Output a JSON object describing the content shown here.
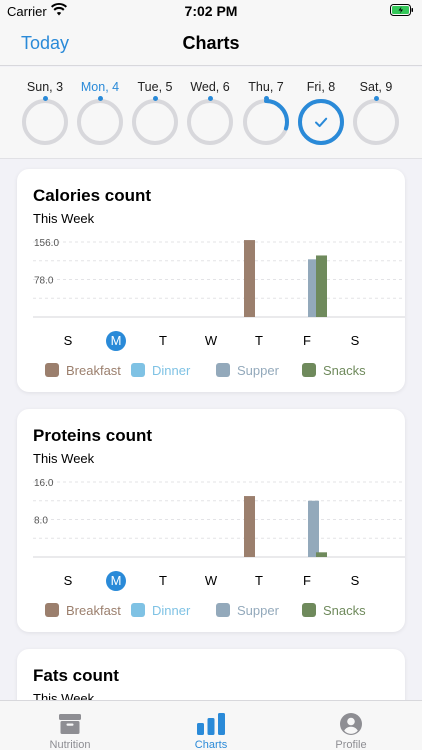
{
  "status_bar": {
    "carrier": "Carrier",
    "time": "7:02 PM"
  },
  "nav": {
    "left_button": "Today",
    "title": "Charts"
  },
  "week": [
    {
      "label": "Sun, 3",
      "progress": 0,
      "active": false,
      "dot": true
    },
    {
      "label": "Mon, 4",
      "progress": 0,
      "active": true,
      "dot": true
    },
    {
      "label": "Tue, 5",
      "progress": 0,
      "active": false,
      "dot": true
    },
    {
      "label": "Wed, 6",
      "progress": 0,
      "active": false,
      "dot": true
    },
    {
      "label": "Thu, 7",
      "progress": 0.3,
      "active": false,
      "dot": true
    },
    {
      "label": "Fri, 8",
      "progress": 1.0,
      "active": false,
      "dot": false,
      "selected": true
    },
    {
      "label": "Sat, 9",
      "progress": 0,
      "active": false,
      "dot": true
    }
  ],
  "colors": {
    "accent": "#2a8ad8",
    "breakfast": "#9b7f6d",
    "dinner": "#7fc2e4",
    "supper": "#93a9bb",
    "snacks": "#6f8a5c",
    "ring": "#d8d8dc"
  },
  "legend": [
    {
      "label": "Breakfast",
      "color": "#9b7f6d"
    },
    {
      "label": "Dinner",
      "color": "#7fc2e4"
    },
    {
      "label": "Supper",
      "color": "#93a9bb"
    },
    {
      "label": "Snacks",
      "color": "#6f8a5c"
    }
  ],
  "week_days": [
    "S",
    "M",
    "T",
    "W",
    "T",
    "F",
    "S"
  ],
  "selected_day_index": 1,
  "chart_data": [
    {
      "type": "bar",
      "title": "Calories count",
      "subtitle": "This Week",
      "categories": [
        "S",
        "M",
        "T",
        "W",
        "T",
        "F",
        "S"
      ],
      "y_ticks": [
        "156.0",
        "78.0"
      ],
      "y_tick_values": [
        156,
        78
      ],
      "ylim": [
        0,
        156
      ],
      "series": [
        {
          "name": "Breakfast",
          "values": [
            0,
            0,
            0,
            0,
            160,
            0,
            0
          ]
        },
        {
          "name": "Dinner",
          "values": [
            0,
            0,
            0,
            0,
            0,
            0,
            0
          ]
        },
        {
          "name": "Supper",
          "values": [
            0,
            0,
            0,
            0,
            0,
            120,
            0
          ]
        },
        {
          "name": "Snacks",
          "values": [
            0,
            0,
            0,
            0,
            0,
            128,
            0
          ]
        }
      ]
    },
    {
      "type": "bar",
      "title": "Proteins count",
      "subtitle": "This Week",
      "categories": [
        "S",
        "M",
        "T",
        "W",
        "T",
        "F",
        "S"
      ],
      "y_ticks": [
        "16.0",
        "8.0"
      ],
      "y_tick_values": [
        16,
        8
      ],
      "ylim": [
        0,
        16
      ],
      "series": [
        {
          "name": "Breakfast",
          "values": [
            0,
            0,
            0,
            0,
            13,
            0,
            0
          ]
        },
        {
          "name": "Dinner",
          "values": [
            0,
            0,
            0,
            0,
            0,
            0,
            0
          ]
        },
        {
          "name": "Supper",
          "values": [
            0,
            0,
            0,
            0,
            0,
            12,
            0
          ]
        },
        {
          "name": "Snacks",
          "values": [
            0,
            0,
            0,
            0,
            0,
            1,
            0
          ]
        }
      ]
    },
    {
      "type": "bar",
      "title": "Fats count",
      "subtitle": "This Week"
    }
  ],
  "tabs": [
    {
      "label": "Nutrition",
      "icon": "archive-box-icon",
      "active": false
    },
    {
      "label": "Charts",
      "icon": "bar-chart-icon",
      "active": true
    },
    {
      "label": "Profile",
      "icon": "person-circle-icon",
      "active": false
    }
  ]
}
